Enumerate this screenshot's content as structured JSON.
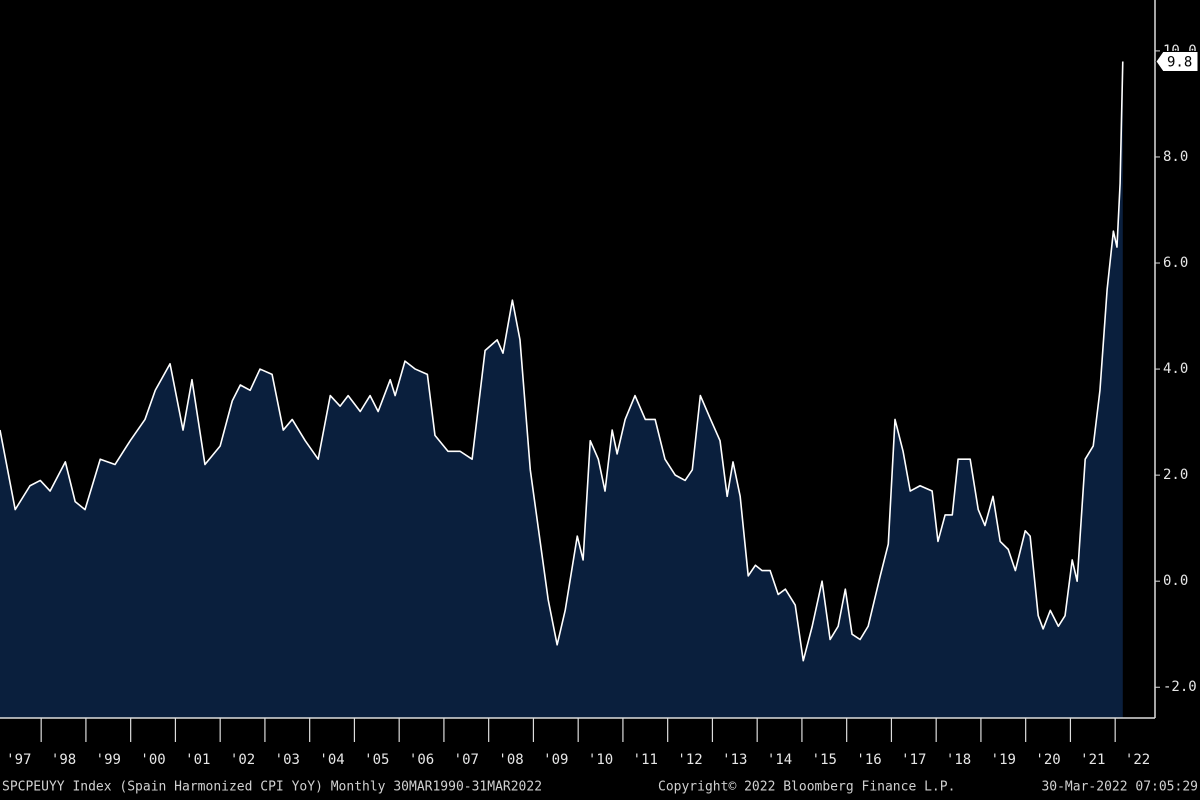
{
  "chart_data": {
    "type": "area",
    "x": [
      1997.08,
      1997.42,
      1997.75,
      1997.98,
      1998.2,
      1998.54,
      1998.76,
      1998.98,
      1999.32,
      1999.65,
      1999.99,
      2000.32,
      2000.55,
      2000.88,
      2001.17,
      2001.37,
      2001.66,
      2002.0,
      2002.27,
      2002.45,
      2002.67,
      2002.89,
      2003.16,
      2003.41,
      2003.61,
      2003.9,
      2004.19,
      2004.46,
      2004.68,
      2004.86,
      2005.13,
      2005.35,
      2005.53,
      2005.8,
      2005.91,
      2006.13,
      2006.36,
      2006.63,
      2006.8,
      2007.09,
      2007.36,
      2007.63,
      2007.92,
      2008.19,
      2008.32,
      2008.53,
      2008.7,
      2008.93,
      2009.15,
      2009.33,
      2009.53,
      2009.71,
      2009.98,
      2010.11,
      2010.27,
      2010.45,
      2010.6,
      2010.76,
      2010.87,
      2011.05,
      2011.27,
      2011.5,
      2011.72,
      2011.94,
      2012.17,
      2012.39,
      2012.55,
      2012.73,
      2012.96,
      2013.17,
      2013.33,
      2013.46,
      2013.62,
      2013.8,
      2013.96,
      2014.11,
      2014.29,
      2014.47,
      2014.63,
      2014.85,
      2015.03,
      2015.23,
      2015.45,
      2015.63,
      2015.81,
      2015.97,
      2016.12,
      2016.3,
      2016.48,
      2016.75,
      2016.93,
      2017.08,
      2017.26,
      2017.42,
      2017.64,
      2017.91,
      2018.04,
      2018.2,
      2018.36,
      2018.49,
      2018.76,
      2018.94,
      2019.09,
      2019.27,
      2019.43,
      2019.61,
      2019.77,
      2019.99,
      2020.1,
      2020.28,
      2020.39,
      2020.55,
      2020.73,
      2020.88,
      2021.04,
      2021.15,
      2021.33,
      2021.51,
      2021.66,
      2021.82,
      2021.96,
      2022.04,
      2022.11,
      2022.17
    ],
    "series": [
      {
        "name": "SPCPEUYY Index",
        "color": "#ffffff",
        "fill": "#0a1f3d",
        "values": [
          2.85,
          1.35,
          1.8,
          1.9,
          1.7,
          2.25,
          1.5,
          1.35,
          2.3,
          2.2,
          2.65,
          3.05,
          3.6,
          4.1,
          2.85,
          3.8,
          2.2,
          2.55,
          3.4,
          3.7,
          3.6,
          4.0,
          3.9,
          2.85,
          3.05,
          2.65,
          2.3,
          3.5,
          3.3,
          3.5,
          3.2,
          3.5,
          3.2,
          3.8,
          3.5,
          4.15,
          4.0,
          3.9,
          2.75,
          2.45,
          2.45,
          2.3,
          4.35,
          4.55,
          4.3,
          5.3,
          4.55,
          2.1,
          0.75,
          -0.35,
          -1.2,
          -0.55,
          0.85,
          0.4,
          2.65,
          2.3,
          1.7,
          2.85,
          2.4,
          3.05,
          3.5,
          3.05,
          3.05,
          2.3,
          2.0,
          1.9,
          2.1,
          3.5,
          3.05,
          2.65,
          1.6,
          2.25,
          1.6,
          0.1,
          0.3,
          0.2,
          0.2,
          -0.25,
          -0.15,
          -0.45,
          -1.5,
          -0.85,
          0.0,
          -1.1,
          -0.85,
          -0.15,
          -1.0,
          -1.1,
          -0.85,
          0.1,
          0.7,
          3.05,
          2.45,
          1.7,
          1.8,
          1.7,
          0.75,
          1.25,
          1.25,
          2.3,
          2.3,
          1.35,
          1.05,
          1.6,
          0.75,
          0.6,
          0.2,
          0.95,
          0.85,
          -0.65,
          -0.9,
          -0.55,
          -0.85,
          -0.65,
          0.4,
          0.0,
          2.3,
          2.55,
          3.6,
          5.5,
          6.6,
          6.3,
          7.5,
          9.8
        ]
      }
    ],
    "last_value": {
      "value": 9.8,
      "label": "9.8"
    },
    "xlim": [
      1997.08,
      2022.89
    ],
    "ylim": [
      -2.58,
      10.96
    ],
    "xticks": [
      {
        "value": 1997,
        "label": "'97"
      },
      {
        "value": 1998,
        "label": "'98"
      },
      {
        "value": 1999,
        "label": "'99"
      },
      {
        "value": 2000,
        "label": "'00"
      },
      {
        "value": 2001,
        "label": "'01"
      },
      {
        "value": 2002,
        "label": "'02"
      },
      {
        "value": 2003,
        "label": "'03"
      },
      {
        "value": 2004,
        "label": "'04"
      },
      {
        "value": 2005,
        "label": "'05"
      },
      {
        "value": 2006,
        "label": "'06"
      },
      {
        "value": 2007,
        "label": "'07"
      },
      {
        "value": 2008,
        "label": "'08"
      },
      {
        "value": 2009,
        "label": "'09"
      },
      {
        "value": 2010,
        "label": "'10"
      },
      {
        "value": 2011,
        "label": "'11"
      },
      {
        "value": 2012,
        "label": "'12"
      },
      {
        "value": 2013,
        "label": "'13"
      },
      {
        "value": 2014,
        "label": "'14"
      },
      {
        "value": 2015,
        "label": "'15"
      },
      {
        "value": 2016,
        "label": "'16"
      },
      {
        "value": 2017,
        "label": "'17"
      },
      {
        "value": 2018,
        "label": "'18"
      },
      {
        "value": 2019,
        "label": "'19"
      },
      {
        "value": 2020,
        "label": "'20"
      },
      {
        "value": 2021,
        "label": "'21"
      },
      {
        "value": 2022,
        "label": "'22"
      }
    ],
    "yticks": [
      {
        "value": -2,
        "label": "-2.0"
      },
      {
        "value": 0,
        "label": "0.0"
      },
      {
        "value": 2,
        "label": "2.0"
      },
      {
        "value": 4,
        "label": "4.0"
      },
      {
        "value": 6,
        "label": "6.0"
      },
      {
        "value": 8,
        "label": "8.0"
      },
      {
        "value": 10,
        "label": "10.0"
      }
    ],
    "footer": {
      "source": "SPCPEUYY Index (Spain Harmonized CPI YoY)  Monthly 30MAR1990-31MAR2022",
      "copyright": "Copyright© 2022 Bloomberg Finance L.P.",
      "timestamp": "30-Mar-2022 07:05:29"
    }
  }
}
